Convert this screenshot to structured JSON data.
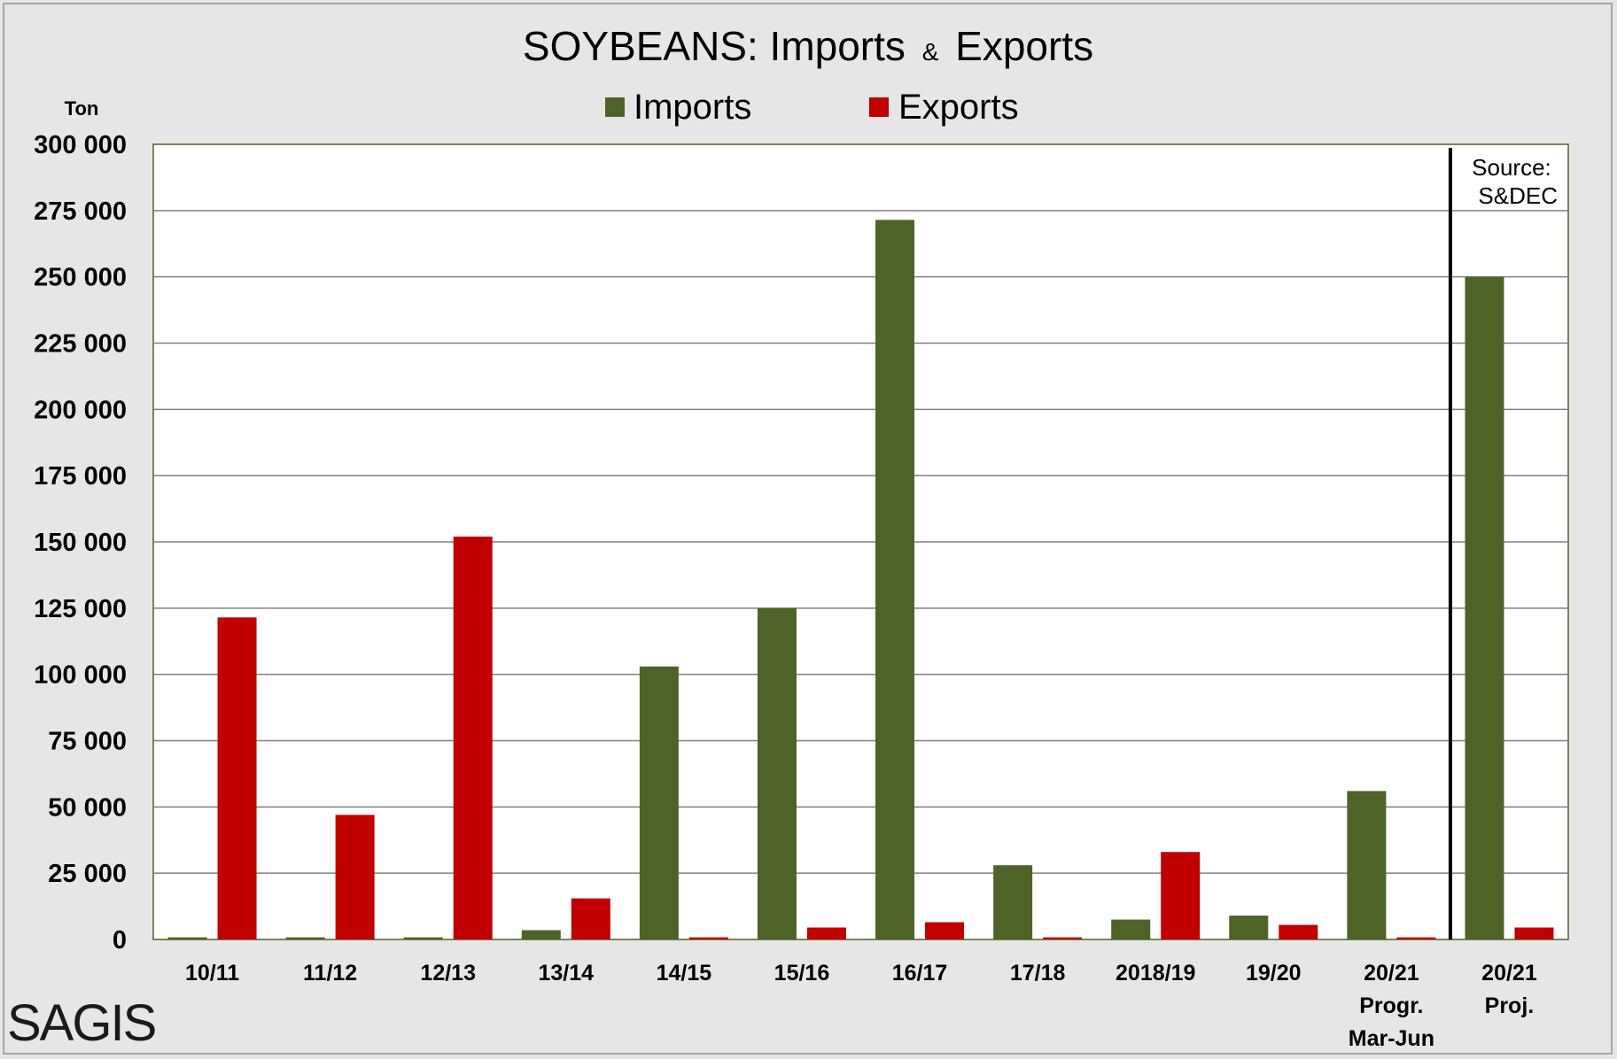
{
  "chart_data": {
    "type": "bar",
    "title_main": "SOYBEANS: Imports",
    "title_amp": "&",
    "title_end": "Exports",
    "ylabel": "Ton",
    "ylim": [
      0,
      300000
    ],
    "ytick_step": 25000,
    "ytick_labels": [
      "0",
      "25 000",
      "50 000",
      "75 000",
      "100 000",
      "125 000",
      "150 000",
      "175 000",
      "200 000",
      "225 000",
      "250 000",
      "275 000",
      "300 000"
    ],
    "grid": true,
    "legend_position": "top-center",
    "categories": [
      [
        "10/11"
      ],
      [
        "11/12"
      ],
      [
        "12/13"
      ],
      [
        "13/14"
      ],
      [
        "14/15"
      ],
      [
        "15/16"
      ],
      [
        "16/17"
      ],
      [
        "17/18"
      ],
      [
        "2018/19"
      ],
      [
        "19/20"
      ],
      [
        "20/21",
        "Progr.",
        "Mar-Jun"
      ],
      [
        "20/21",
        "Proj."
      ]
    ],
    "series": [
      {
        "name": "Imports",
        "color": "#4f6228",
        "values": [
          800,
          800,
          800,
          3500,
          103000,
          125000,
          271500,
          28000,
          7500,
          9000,
          56000,
          250000
        ]
      },
      {
        "name": "Exports",
        "color": "#c00000",
        "values": [
          121500,
          47000,
          152000,
          15500,
          800,
          4500,
          6500,
          800,
          33000,
          5500,
          800,
          4500
        ]
      }
    ],
    "annotation": [
      "Source:",
      "S&DEC"
    ],
    "divider_after_category": 10
  },
  "logo_text": "SAGIS",
  "colors": {
    "background": "#e6e6e6",
    "plot_background": "#ffffff",
    "grid": "#808080",
    "divider": "#000000"
  }
}
